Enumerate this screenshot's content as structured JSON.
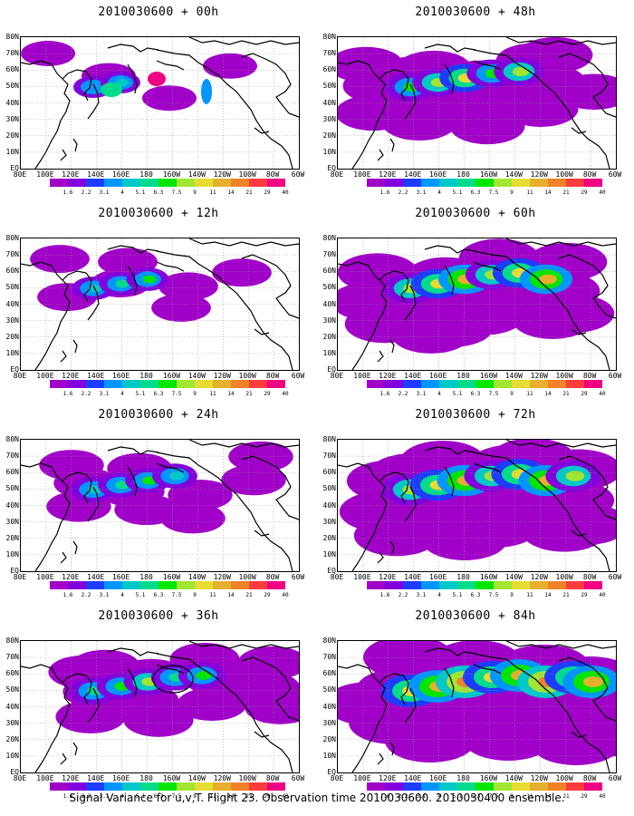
{
  "panels": [
    {
      "title": "2010030600 + 00h",
      "level": 0
    },
    {
      "title": "2010030600 + 48h",
      "level": 4
    },
    {
      "title": "2010030600 + 12h",
      "level": 1
    },
    {
      "title": "2010030600 + 60h",
      "level": 5
    },
    {
      "title": "2010030600 + 24h",
      "level": 2
    },
    {
      "title": "2010030600 + 72h",
      "level": 6
    },
    {
      "title": "2010030600 + 36h",
      "level": 3
    },
    {
      "title": "2010030600 + 84h",
      "level": 7
    }
  ],
  "lat_labels": [
    "80N",
    "70N",
    "60N",
    "50N",
    "40N",
    "30N",
    "20N",
    "10N",
    "EQ"
  ],
  "lon_labels": [
    "80E",
    "100E",
    "120E",
    "140E",
    "160E",
    "180",
    "160W",
    "140W",
    "120W",
    "100W",
    "80W",
    "60W"
  ],
  "colorbar": {
    "colors": [
      "#a000c8",
      "#8200dc",
      "#1e3cff",
      "#0096ff",
      "#00c8c8",
      "#00dc8c",
      "#00e600",
      "#a0e632",
      "#e6dc32",
      "#e6af2d",
      "#f08228",
      "#fa3c3c",
      "#f00082"
    ],
    "labels": [
      "1.6",
      "2.2",
      "3.1",
      "4",
      "5.1",
      "6.3",
      "7.5",
      "9",
      "11",
      "14",
      "21",
      "29",
      "40"
    ]
  },
  "caption": "Signal Variance for u,v,T. Flight 23. Observation time 2010030600. 2010030400 ensemble."
}
